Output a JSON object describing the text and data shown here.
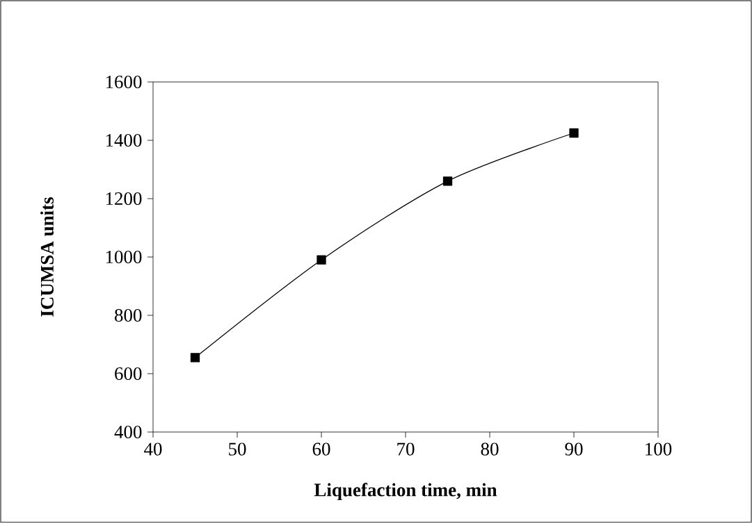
{
  "chart_data": {
    "type": "line",
    "xlabel": "Liquefaction time, min",
    "ylabel": "ICUMSA units",
    "x": [
      45,
      60,
      75,
      90
    ],
    "series": [
      {
        "color": "#000000",
        "values": [
          655,
          990,
          1260,
          1425
        ]
      }
    ],
    "xlim": [
      40,
      100
    ],
    "xticks": [
      40,
      50,
      60,
      70,
      80,
      90,
      100
    ],
    "ylim": [
      400,
      1600
    ],
    "yticks": [
      400,
      600,
      800,
      1000,
      1200,
      1400,
      1600
    ],
    "marker": "square",
    "line_style": "solid",
    "grid": false
  }
}
